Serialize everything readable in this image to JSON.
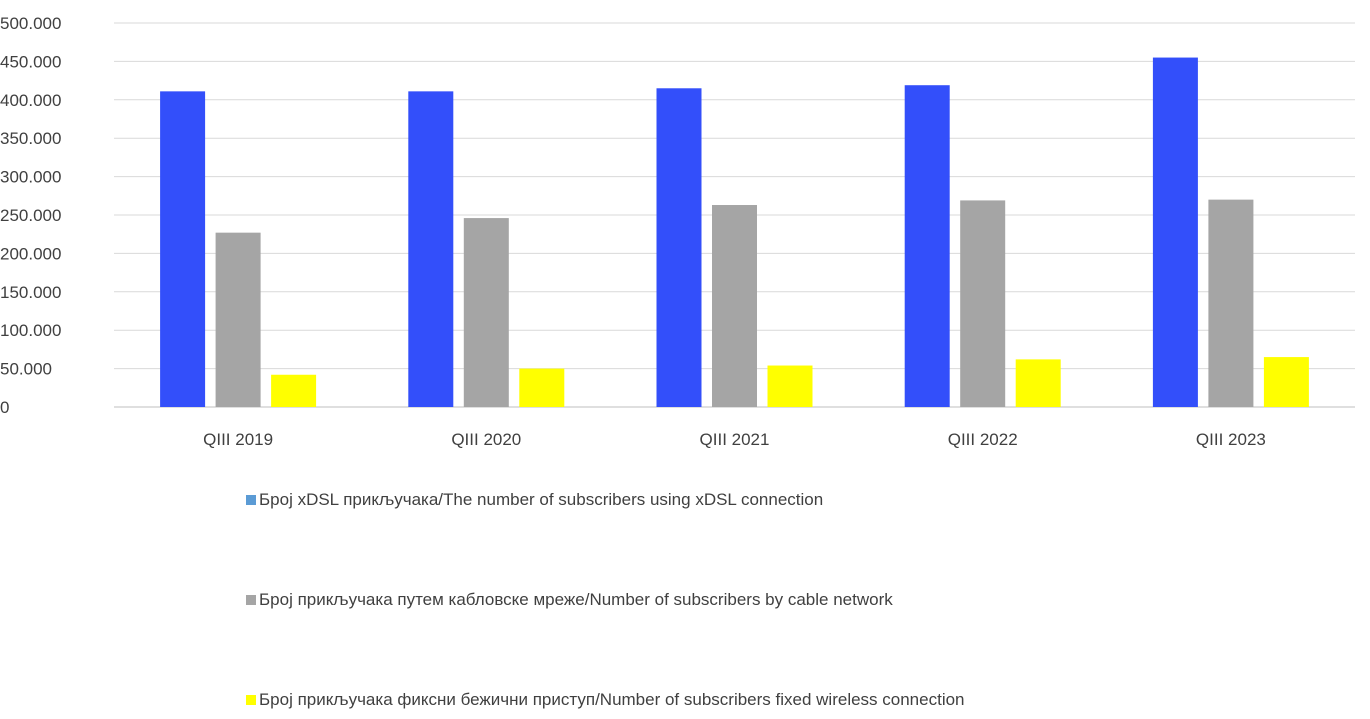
{
  "chart_data": {
    "type": "bar",
    "title": "",
    "xlabel": "",
    "ylabel": "",
    "categories": [
      "QIII 2019",
      "QIII 2020",
      "QIII 2021",
      "QIII 2022",
      "QIII 2023"
    ],
    "y_ticks": [
      "0",
      "50.000",
      "100.000",
      "150.000",
      "200.000",
      "250.000",
      "300.000",
      "350.000",
      "400.000",
      "450.000",
      "500.000"
    ],
    "ylim": [
      0,
      500000
    ],
    "grid": true,
    "legend_position": "bottom",
    "series": [
      {
        "name": "Број  xDSL прикључака/The number of subscribers using  xDSL connection",
        "values": [
          411000,
          411000,
          415000,
          419000,
          455000
        ],
        "color": "#334FFA",
        "legend_color": "#5B9BD5"
      },
      {
        "name": "Број прикључака путем кабловске мреже/Number of subscribers by cable network",
        "values": [
          227000,
          246000,
          263000,
          269000,
          270000
        ],
        "color": "#A5A5A5",
        "legend_color": "#A5A5A5"
      },
      {
        "name": "Број прикључака фиксни бежични приступ/Number of subscribers fixed wireless connection",
        "values": [
          42000,
          50000,
          54000,
          62000,
          65000
        ],
        "color": "#FFFF00",
        "legend_color": "#FFFF00"
      }
    ]
  }
}
